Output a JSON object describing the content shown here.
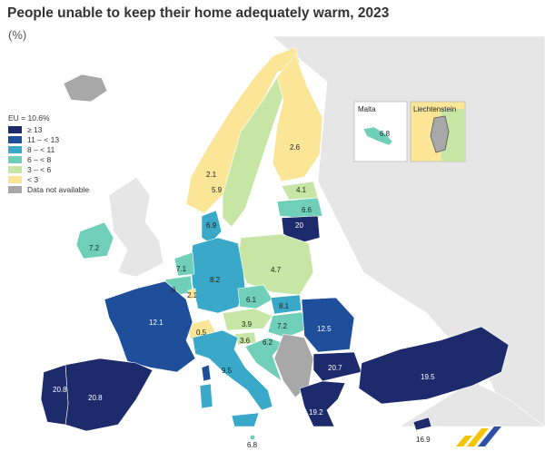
{
  "title": "People unable to keep their home adequately warm, 2023",
  "subtitle": "(%)",
  "legend": {
    "heading": "EU = 10.6%",
    "items": [
      {
        "label": "≥ 13",
        "color": "#1d2a6b"
      },
      {
        "label": "11 – < 13",
        "color": "#1f4f9a"
      },
      {
        "label": "8 – < 11",
        "color": "#3aa8c8"
      },
      {
        "label": "6 – < 8",
        "color": "#6fcfb8"
      },
      {
        "label": "3 – < 6",
        "color": "#c7e6a6"
      },
      {
        "label": "< 3",
        "color": "#fbe596"
      },
      {
        "label": "Data not available",
        "color": "#a8a8a8"
      }
    ]
  },
  "insets": {
    "malta": {
      "title": "Malta",
      "value": "6.8"
    },
    "liechtenstein": {
      "title": "Liechtenstein"
    }
  },
  "values": {
    "norway": "2.1",
    "sweden": "5.9",
    "finland": "2.6",
    "estonia": "4.1",
    "latvia": "6.6",
    "lithuania": "20",
    "denmark": "6.9",
    "ireland": "7.2",
    "netherlands": "7.1",
    "belgium": "6",
    "luxembourg": "2.1",
    "germany": "8.2",
    "poland": "4.7",
    "czechia": "6.1",
    "slovakia": "8.1",
    "austria": "3.9",
    "hungary": "7.2",
    "france": "12.1",
    "switzerland": "0.5",
    "slovenia": "3.6",
    "croatia": "6.2",
    "romania": "12.5",
    "bulgaria": "20.7",
    "italy": "9.5",
    "portugal": "20.8",
    "spain": "20.8",
    "greece": "19.2",
    "turkey": "19.5",
    "malta_main": "6.8",
    "cyprus": "16.9"
  },
  "colors": {
    "sea": "#ffffff",
    "non_eu": "#e6e6e6",
    "na": "#a8a8a8"
  }
}
